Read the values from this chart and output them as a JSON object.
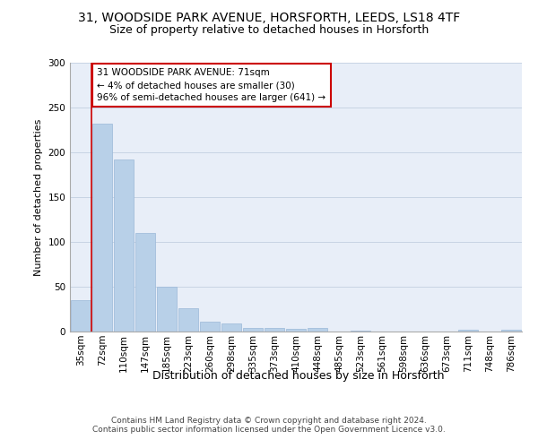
{
  "title1": "31, WOODSIDE PARK AVENUE, HORSFORTH, LEEDS, LS18 4TF",
  "title2": "Size of property relative to detached houses in Horsforth",
  "xlabel": "Distribution of detached houses by size in Horsforth",
  "ylabel": "Number of detached properties",
  "categories": [
    "35sqm",
    "72sqm",
    "110sqm",
    "147sqm",
    "185sqm",
    "223sqm",
    "260sqm",
    "298sqm",
    "335sqm",
    "373sqm",
    "410sqm",
    "448sqm",
    "485sqm",
    "523sqm",
    "561sqm",
    "598sqm",
    "636sqm",
    "673sqm",
    "711sqm",
    "748sqm",
    "786sqm"
  ],
  "values": [
    35,
    232,
    192,
    110,
    50,
    26,
    11,
    9,
    4,
    4,
    3,
    4,
    0,
    1,
    0,
    0,
    0,
    0,
    2,
    0,
    2
  ],
  "bar_color": "#b8d0e8",
  "bar_edge_color": "#9ab8d8",
  "highlight_line_color": "#cc0000",
  "annotation_text": "31 WOODSIDE PARK AVENUE: 71sqm\n← 4% of detached houses are smaller (30)\n96% of semi-detached houses are larger (641) →",
  "annotation_box_edgecolor": "#cc0000",
  "ylim": [
    0,
    300
  ],
  "yticks": [
    0,
    50,
    100,
    150,
    200,
    250,
    300
  ],
  "grid_color": "#c8d4e4",
  "background_color": "#e8eef8",
  "footnote": "Contains HM Land Registry data © Crown copyright and database right 2024.\nContains public sector information licensed under the Open Government Licence v3.0.",
  "title1_fontsize": 10,
  "title2_fontsize": 9,
  "xlabel_fontsize": 9,
  "ylabel_fontsize": 8,
  "tick_fontsize": 7.5,
  "annotation_fontsize": 7.5,
  "footnote_fontsize": 6.5
}
